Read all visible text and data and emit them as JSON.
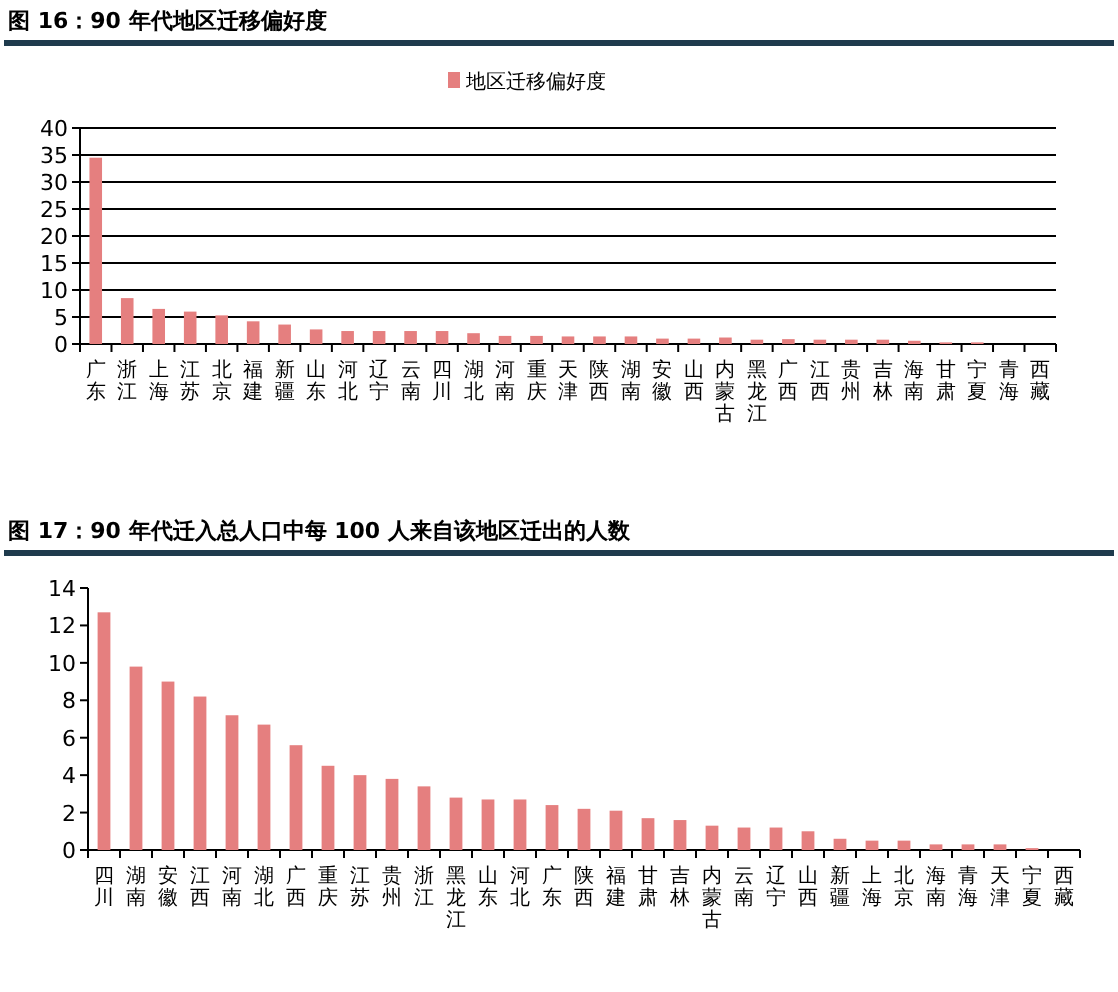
{
  "chart_data": [
    {
      "type": "bar",
      "title": "图 16：90 年代地区迁移偏好度",
      "categories": [
        "广东",
        "浙江",
        "上海",
        "江苏",
        "北京",
        "福建",
        "新疆",
        "山东",
        "河北",
        "辽宁",
        "云南",
        "四川",
        "湖北",
        "河南",
        "重庆",
        "天津",
        "陕西",
        "湖南",
        "安徽",
        "山西",
        "内蒙古",
        "黑龙江",
        "广西",
        "江西",
        "贵州",
        "吉林",
        "海南",
        "甘肃",
        "宁夏",
        "青海",
        "西藏"
      ],
      "series": [
        {
          "name": "地区迁移偏好度",
          "color": "#e57f7f",
          "values": [
            34.5,
            8.5,
            6.5,
            6,
            5.3,
            4.2,
            3.6,
            2.7,
            2.4,
            2.4,
            2.4,
            2.4,
            2.0,
            1.5,
            1.5,
            1.4,
            1.4,
            1.4,
            1.0,
            1.0,
            1.2,
            0.8,
            0.9,
            0.8,
            0.8,
            0.8,
            0.6,
            0.3,
            0.3,
            null,
            null
          ]
        }
      ],
      "ylim": [
        0,
        40
      ],
      "yticks": [
        0,
        5,
        10,
        15,
        20,
        25,
        30,
        35,
        40
      ],
      "grid": "y",
      "legend": "top"
    },
    {
      "type": "bar",
      "title": "图 17：90 年代迁入总人口中每 100 人来自该地区迁出的人数",
      "categories": [
        "四川",
        "湖南",
        "安徽",
        "江西",
        "河南",
        "湖北",
        "广西",
        "重庆",
        "江苏",
        "贵州",
        "浙江",
        "黑龙江",
        "山东",
        "河北",
        "广东",
        "陕西",
        "福建",
        "甘肃",
        "吉林",
        "内蒙古",
        "云南",
        "辽宁",
        "山西",
        "新疆",
        "上海",
        "北京",
        "海南",
        "青海",
        "天津",
        "宁夏",
        "西藏"
      ],
      "series": [
        {
          "color": "#e57f7f",
          "values": [
            12.7,
            9.8,
            9.0,
            8.2,
            7.2,
            6.7,
            5.6,
            4.5,
            4.0,
            3.8,
            3.4,
            2.8,
            2.7,
            2.7,
            2.4,
            2.2,
            2.1,
            1.7,
            1.6,
            1.3,
            1.2,
            1.2,
            1.0,
            0.6,
            0.5,
            0.5,
            0.3,
            0.3,
            0.3,
            0.1,
            0.0
          ]
        }
      ],
      "ylim": [
        0,
        14
      ],
      "yticks": [
        0,
        2,
        4,
        6,
        8,
        10,
        12,
        14
      ]
    }
  ]
}
